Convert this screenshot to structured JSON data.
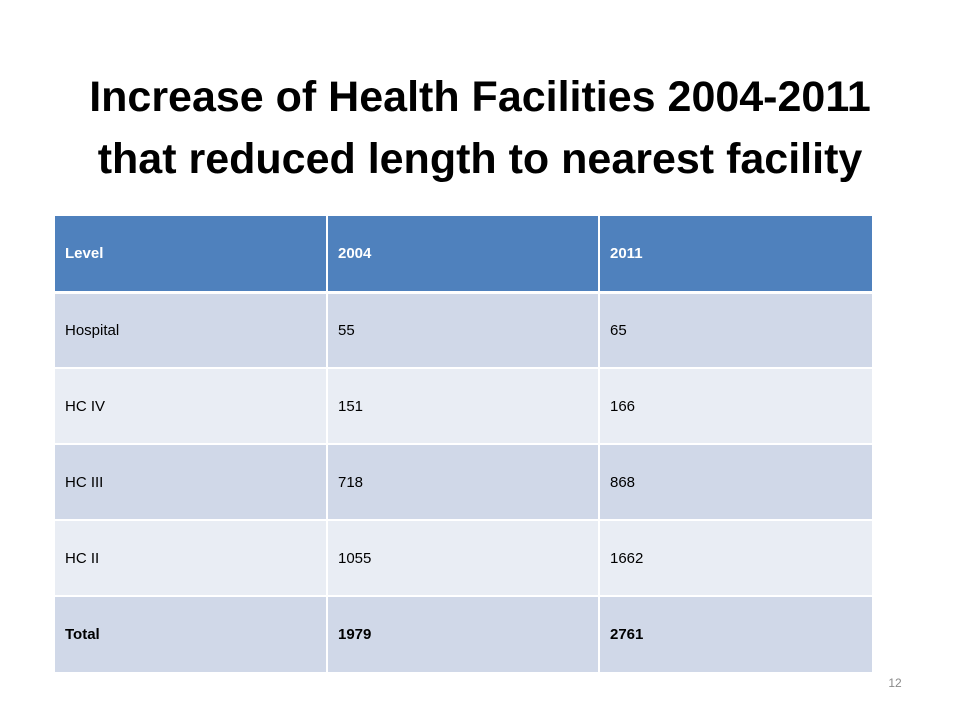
{
  "slide": {
    "title_line1": "Increase of Health Facilities 2004-2011",
    "title_line2": "that reduced length to nearest facility",
    "page_number": "12"
  },
  "table": {
    "headers": [
      "Level",
      "2004",
      "2011"
    ],
    "rows": [
      [
        "Hospital",
        "55",
        "65"
      ],
      [
        "HC IV",
        "151",
        "166"
      ],
      [
        "HC III",
        "718",
        "868"
      ],
      [
        "HC II",
        "1055",
        "1662"
      ]
    ],
    "total": [
      "Total",
      "1979",
      "2761"
    ]
  },
  "colors": {
    "header_bg": "#4f81bd",
    "row_dark": "#d0d8e8",
    "row_light": "#e9edf4"
  }
}
